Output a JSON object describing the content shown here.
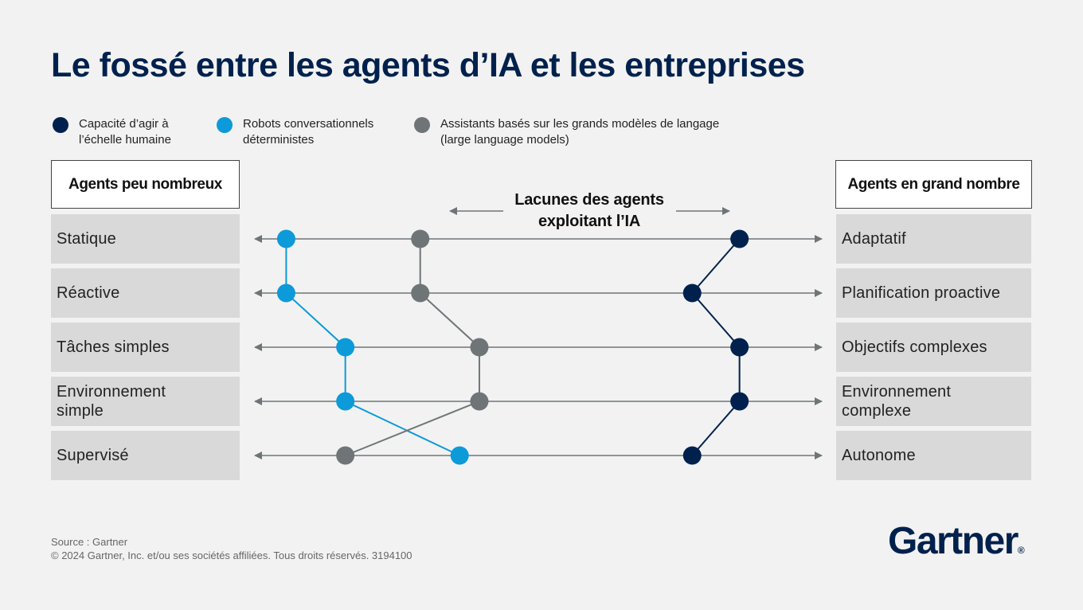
{
  "title": "Le fossé entre les agents d’IA et les entreprises",
  "legend": [
    {
      "line1": "Capacité d’agir à",
      "line2": "l’échelle humaine",
      "color": "#00214d"
    },
    {
      "line1": "Robots conversationnels",
      "line2": "déterministes",
      "color": "#0c9ad9"
    },
    {
      "line1": "Assistants basés sur les grands modèles de langage",
      "line2": "(large language models)",
      "color": "#6f7577"
    }
  ],
  "left_header": "Agents peu nombreux",
  "right_header": "Agents en grand nombre",
  "gap_label": {
    "line1": "Lacunes des agents",
    "line2": "exploitant l’IA"
  },
  "rows": [
    {
      "left": [
        "Statique"
      ],
      "right": [
        "Adaptatif"
      ]
    },
    {
      "left": [
        "Réactive"
      ],
      "right": [
        "Planification proactive"
      ]
    },
    {
      "left": [
        "Tâches simples"
      ],
      "right": [
        "Objectifs complexes"
      ]
    },
    {
      "left": [
        "Environnement",
        "simple"
      ],
      "right": [
        "Environnement",
        "complexe"
      ]
    },
    {
      "left": [
        "Supervisé"
      ],
      "right": [
        "Autonome"
      ]
    }
  ],
  "series": [
    {
      "key": "chatbots",
      "color": "#0c9ad9",
      "values": [
        0.12,
        0.12,
        0.27,
        0.27,
        0.56
      ]
    },
    {
      "key": "llm",
      "color": "#6f7577",
      "values": [
        0.46,
        0.46,
        0.61,
        0.61,
        0.27
      ]
    },
    {
      "key": "human",
      "color": "#00214d",
      "values": [
        1.27,
        1.15,
        1.27,
        1.27,
        1.15
      ]
    }
  ],
  "footer": {
    "source": "Source : Gartner",
    "copyright": "© 2024 Gartner, Inc. et/ou ses sociétés affiliées. Tous droits réservés. 3194100"
  },
  "brand": {
    "name": "Gartner",
    "mark": "®"
  }
}
